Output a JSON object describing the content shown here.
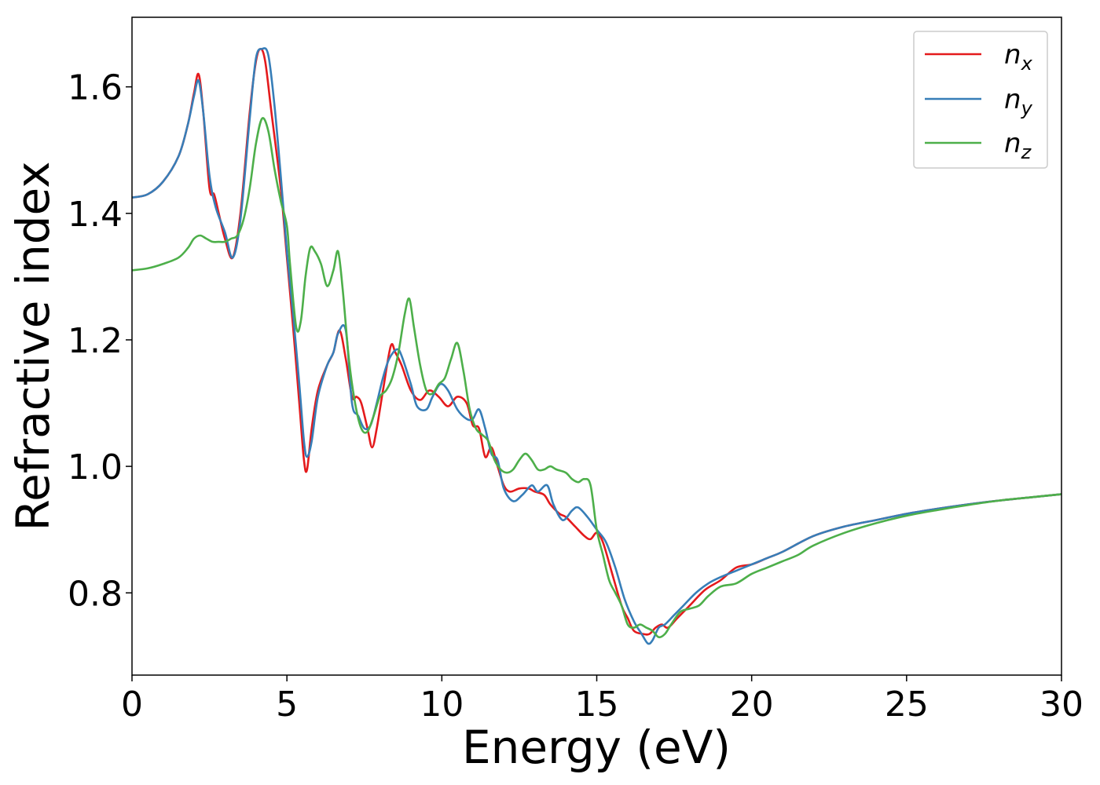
{
  "chart_data": {
    "type": "line",
    "xlabel": "Energy (eV)",
    "ylabel": "Refractive index",
    "xlim": [
      0,
      30
    ],
    "ylim": [
      0.67,
      1.71
    ],
    "x_ticks": [
      0,
      5,
      10,
      15,
      20,
      25,
      30
    ],
    "x_tick_labels": [
      "0",
      "5",
      "10",
      "15",
      "20",
      "25",
      "30"
    ],
    "y_ticks": [
      0.8,
      1.0,
      1.2,
      1.4,
      1.6
    ],
    "y_tick_labels": [
      "0.8",
      "1.0",
      "1.2",
      "1.4",
      "1.6"
    ],
    "grid": false,
    "legend_position": "top-right",
    "series": [
      {
        "name": "n_x",
        "label_base": "n",
        "label_sub": "x",
        "color": "#e41a1c",
        "x": [
          0,
          0.5,
          1.0,
          1.5,
          1.8,
          2.0,
          2.15,
          2.3,
          2.5,
          2.65,
          2.8,
          3.0,
          3.25,
          3.5,
          3.8,
          4.0,
          4.15,
          4.3,
          4.5,
          4.8,
          5.0,
          5.2,
          5.4,
          5.55,
          5.65,
          5.8,
          6.0,
          6.3,
          6.5,
          6.7,
          6.9,
          7.1,
          7.25,
          7.4,
          7.6,
          7.75,
          7.9,
          8.1,
          8.35,
          8.5,
          8.7,
          9.0,
          9.3,
          9.6,
          9.9,
          10.2,
          10.5,
          10.8,
          11.0,
          11.2,
          11.4,
          11.6,
          11.8,
          12.0,
          12.2,
          12.5,
          12.8,
          13.0,
          13.3,
          13.5,
          13.8,
          14.0,
          14.3,
          14.6,
          14.8,
          15.0,
          15.2,
          15.5,
          15.8,
          16.0,
          16.2,
          16.5,
          16.7,
          16.9,
          17.1,
          17.3,
          17.6,
          18.0,
          18.5,
          19.0,
          19.5,
          20.0,
          20.5,
          21.0,
          22.0,
          23.0,
          24.0,
          25.0,
          26.0,
          27.0,
          28.0,
          29.0,
          30.0
        ],
        "y": [
          1.425,
          1.43,
          1.45,
          1.49,
          1.54,
          1.59,
          1.62,
          1.56,
          1.44,
          1.43,
          1.4,
          1.36,
          1.33,
          1.4,
          1.56,
          1.64,
          1.66,
          1.64,
          1.56,
          1.44,
          1.33,
          1.22,
          1.1,
          1.01,
          0.995,
          1.06,
          1.12,
          1.16,
          1.18,
          1.215,
          1.17,
          1.11,
          1.11,
          1.1,
          1.06,
          1.03,
          1.06,
          1.12,
          1.19,
          1.18,
          1.16,
          1.12,
          1.105,
          1.12,
          1.11,
          1.095,
          1.11,
          1.1,
          1.065,
          1.06,
          1.015,
          1.03,
          1.0,
          0.97,
          0.96,
          0.965,
          0.965,
          0.96,
          0.955,
          0.94,
          0.925,
          0.92,
          0.905,
          0.89,
          0.885,
          0.895,
          0.88,
          0.83,
          0.78,
          0.76,
          0.74,
          0.735,
          0.735,
          0.745,
          0.75,
          0.745,
          0.76,
          0.78,
          0.805,
          0.82,
          0.84,
          0.845,
          0.855,
          0.865,
          0.89,
          0.905,
          0.915,
          0.925,
          0.933,
          0.94,
          0.946,
          0.951,
          0.956
        ]
      },
      {
        "name": "n_y",
        "label_base": "n",
        "label_sub": "y",
        "color": "#377eb8",
        "x": [
          0,
          0.5,
          1.0,
          1.5,
          1.8,
          2.0,
          2.15,
          2.3,
          2.5,
          2.7,
          3.0,
          3.25,
          3.5,
          3.8,
          4.0,
          4.2,
          4.4,
          4.6,
          4.8,
          5.0,
          5.2,
          5.4,
          5.55,
          5.65,
          5.8,
          6.0,
          6.3,
          6.5,
          6.65,
          6.9,
          7.1,
          7.3,
          7.5,
          7.7,
          7.9,
          8.1,
          8.3,
          8.55,
          8.7,
          9.0,
          9.2,
          9.5,
          9.7,
          9.95,
          10.2,
          10.5,
          10.8,
          11.0,
          11.2,
          11.4,
          11.6,
          11.8,
          12.0,
          12.3,
          12.6,
          12.9,
          13.1,
          13.4,
          13.6,
          13.9,
          14.2,
          14.4,
          14.7,
          15.0,
          15.3,
          15.6,
          15.9,
          16.2,
          16.45,
          16.65,
          16.8,
          17.0,
          17.2,
          17.5,
          17.8,
          18.2,
          18.6,
          19.0,
          19.5,
          20.0,
          20.5,
          21.0,
          22.0,
          23.0,
          24.0,
          25.0,
          26.0,
          27.0,
          28.0,
          29.0,
          30.0
        ],
        "y": [
          1.425,
          1.43,
          1.45,
          1.49,
          1.54,
          1.585,
          1.61,
          1.56,
          1.46,
          1.41,
          1.37,
          1.33,
          1.39,
          1.55,
          1.645,
          1.66,
          1.65,
          1.57,
          1.46,
          1.34,
          1.24,
          1.13,
          1.04,
          1.015,
          1.04,
          1.11,
          1.16,
          1.18,
          1.21,
          1.215,
          1.1,
          1.08,
          1.06,
          1.065,
          1.1,
          1.14,
          1.17,
          1.185,
          1.175,
          1.13,
          1.095,
          1.09,
          1.11,
          1.13,
          1.12,
          1.09,
          1.075,
          1.075,
          1.09,
          1.06,
          1.02,
          1.01,
          0.965,
          0.945,
          0.955,
          0.97,
          0.96,
          0.97,
          0.94,
          0.915,
          0.93,
          0.935,
          0.92,
          0.9,
          0.88,
          0.84,
          0.79,
          0.755,
          0.735,
          0.72,
          0.725,
          0.745,
          0.75,
          0.765,
          0.78,
          0.8,
          0.815,
          0.825,
          0.835,
          0.845,
          0.855,
          0.865,
          0.89,
          0.905,
          0.915,
          0.925,
          0.933,
          0.94,
          0.946,
          0.951,
          0.956
        ]
      },
      {
        "name": "n_z",
        "label_base": "n",
        "label_sub": "z",
        "color": "#4daf4a",
        "x": [
          0,
          0.5,
          1.0,
          1.5,
          1.8,
          2.0,
          2.2,
          2.4,
          2.6,
          2.8,
          3.0,
          3.2,
          3.4,
          3.6,
          3.8,
          4.0,
          4.2,
          4.4,
          4.6,
          4.8,
          5.0,
          5.1,
          5.3,
          5.45,
          5.6,
          5.75,
          5.9,
          6.1,
          6.3,
          6.5,
          6.65,
          6.8,
          7.0,
          7.2,
          7.4,
          7.6,
          7.8,
          8.0,
          8.2,
          8.4,
          8.6,
          8.8,
          8.95,
          9.1,
          9.3,
          9.5,
          9.7,
          9.9,
          10.1,
          10.3,
          10.5,
          10.7,
          10.9,
          11.1,
          11.3,
          11.5,
          11.7,
          11.9,
          12.1,
          12.3,
          12.5,
          12.7,
          12.9,
          13.1,
          13.3,
          13.5,
          13.7,
          14.0,
          14.2,
          14.4,
          14.6,
          14.8,
          15.0,
          15.2,
          15.4,
          15.6,
          15.8,
          16.0,
          16.2,
          16.4,
          16.6,
          16.8,
          17.0,
          17.2,
          17.4,
          17.7,
          18.0,
          18.3,
          18.6,
          19.0,
          19.5,
          20.0,
          20.5,
          21.0,
          21.5,
          22.0,
          23.0,
          24.0,
          25.0,
          26.0,
          27.0,
          28.0,
          29.0,
          30.0
        ],
        "y": [
          1.31,
          1.313,
          1.32,
          1.33,
          1.345,
          1.36,
          1.365,
          1.36,
          1.355,
          1.355,
          1.355,
          1.36,
          1.365,
          1.39,
          1.44,
          1.51,
          1.55,
          1.53,
          1.47,
          1.42,
          1.38,
          1.32,
          1.22,
          1.23,
          1.3,
          1.345,
          1.34,
          1.32,
          1.285,
          1.31,
          1.34,
          1.28,
          1.17,
          1.1,
          1.06,
          1.055,
          1.08,
          1.11,
          1.12,
          1.14,
          1.18,
          1.24,
          1.265,
          1.22,
          1.16,
          1.12,
          1.115,
          1.13,
          1.14,
          1.17,
          1.195,
          1.15,
          1.09,
          1.06,
          1.05,
          1.04,
          1.01,
          0.995,
          0.99,
          0.995,
          1.01,
          1.02,
          1.01,
          0.995,
          0.995,
          1.0,
          0.995,
          0.99,
          0.98,
          0.975,
          0.98,
          0.97,
          0.9,
          0.86,
          0.82,
          0.8,
          0.78,
          0.75,
          0.745,
          0.75,
          0.745,
          0.74,
          0.73,
          0.735,
          0.75,
          0.77,
          0.775,
          0.78,
          0.795,
          0.81,
          0.815,
          0.83,
          0.84,
          0.85,
          0.86,
          0.875,
          0.895,
          0.91,
          0.922,
          0.931,
          0.939,
          0.946,
          0.951,
          0.956
        ]
      }
    ]
  }
}
